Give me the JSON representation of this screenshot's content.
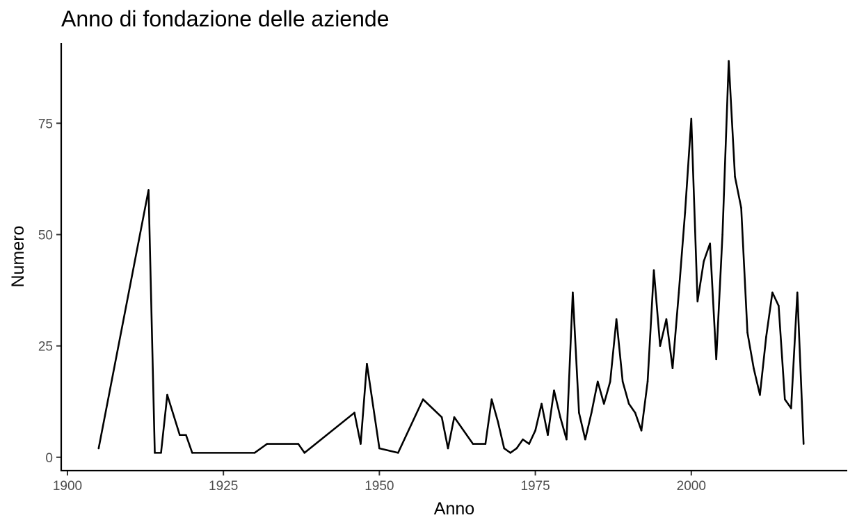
{
  "chart_data": {
    "type": "line",
    "title": "Anno di fondazione delle aziende",
    "xlabel": "Anno",
    "ylabel": "Numero",
    "xlim": [
      1899,
      2025
    ],
    "ylim": [
      -3,
      93
    ],
    "x_ticks": [
      1900,
      1925,
      1950,
      1975,
      2000
    ],
    "y_ticks": [
      0,
      25,
      50,
      75
    ],
    "grid": false,
    "line_color": "#000000",
    "series": [
      {
        "x": [
          1905,
          1913,
          1914,
          1915,
          1916,
          1918,
          1919,
          1920,
          1930,
          1932,
          1937,
          1938,
          1946,
          1947,
          1948,
          1950,
          1953,
          1957,
          1960,
          1961,
          1962,
          1965,
          1967,
          1968,
          1969,
          1970,
          1971,
          1972,
          1973,
          1974,
          1975,
          1976,
          1977,
          1978,
          1979,
          1980,
          1981,
          1982,
          1983,
          1984,
          1985,
          1986,
          1987,
          1988,
          1989,
          1990,
          1991,
          1992,
          1993,
          1994,
          1995,
          1996,
          1997,
          1998,
          1999,
          2000,
          2001,
          2002,
          2003,
          2004,
          2005,
          2006,
          2007,
          2008,
          2009,
          2010,
          2011,
          2012,
          2013,
          2014,
          2015,
          2016,
          2017,
          2018
        ],
        "y": [
          2,
          60,
          1,
          1,
          14,
          5,
          5,
          1,
          1,
          3,
          3,
          1,
          10,
          3,
          21,
          2,
          1,
          13,
          9,
          2,
          9,
          3,
          3,
          13,
          8,
          2,
          1,
          2,
          4,
          3,
          6,
          12,
          5,
          15,
          9,
          4,
          37,
          10,
          4,
          10,
          17,
          12,
          17,
          31,
          17,
          12,
          10,
          6,
          17,
          42,
          25,
          31,
          20,
          37,
          55,
          76,
          35,
          44,
          48,
          22,
          50,
          89,
          63,
          56,
          28,
          20,
          14,
          27,
          37,
          34,
          13,
          11,
          37,
          3
        ]
      }
    ]
  }
}
